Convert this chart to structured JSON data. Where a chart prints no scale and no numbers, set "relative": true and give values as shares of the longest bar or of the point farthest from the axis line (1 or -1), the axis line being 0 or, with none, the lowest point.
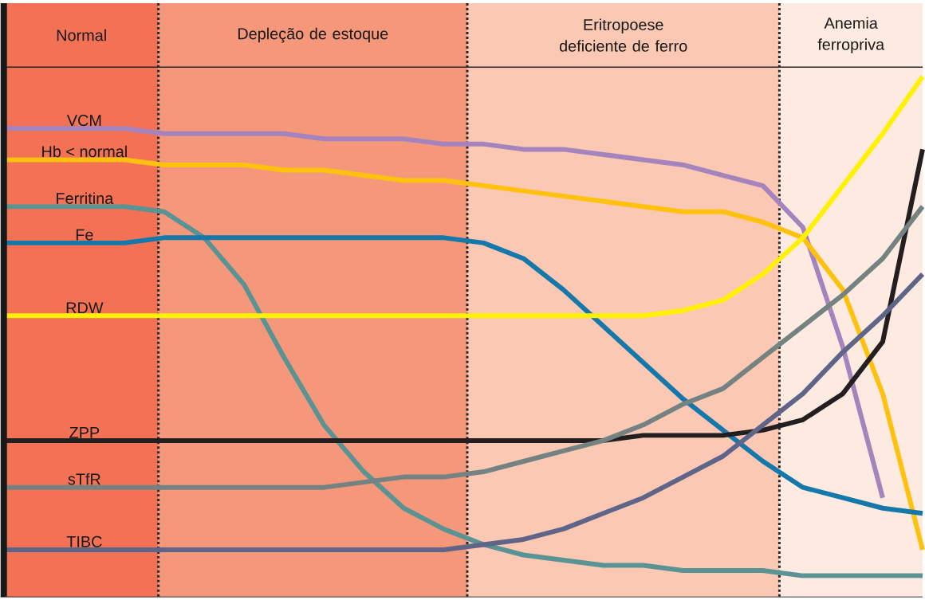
{
  "chart_data": {
    "type": "line",
    "relative": true,
    "categories": [
      null,
      null,
      null,
      null,
      null,
      null,
      null,
      null,
      null,
      null,
      null,
      null,
      null,
      null,
      null,
      null,
      null,
      null,
      null,
      null,
      null,
      null,
      null,
      null
    ],
    "series": [
      {
        "name": "VCM",
        "color": "#a584bd",
        "values": [
          0.9,
          0.9,
          0.9,
          0.9,
          0.89,
          0.89,
          0.89,
          0.89,
          0.88,
          0.88,
          0.88,
          0.87,
          0.87,
          0.86,
          0.86,
          0.85,
          0.84,
          0.83,
          0.81,
          0.79,
          0.71,
          0.48,
          0.19,
          null
        ]
      },
      {
        "name": "Hb < normal",
        "color": "#fdc10e",
        "values": [
          0.84,
          0.84,
          0.84,
          0.84,
          0.83,
          0.83,
          0.83,
          0.82,
          0.82,
          0.81,
          0.8,
          0.8,
          0.79,
          0.78,
          0.77,
          0.76,
          0.75,
          0.74,
          0.74,
          0.72,
          0.69,
          0.59,
          0.39,
          0.09
        ]
      },
      {
        "name": "Ferritina",
        "color": "#5a9394",
        "values": [
          0.75,
          0.75,
          0.75,
          0.75,
          0.74,
          0.69,
          0.6,
          0.46,
          0.33,
          0.24,
          0.17,
          0.13,
          0.1,
          0.08,
          0.07,
          0.06,
          0.06,
          0.05,
          0.05,
          0.05,
          0.04,
          0.04,
          0.04,
          0.04
        ]
      },
      {
        "name": "Fe",
        "color": "#1478ab",
        "values": [
          0.68,
          0.68,
          0.68,
          0.68,
          0.69,
          0.69,
          0.69,
          0.69,
          0.69,
          0.69,
          0.69,
          0.69,
          0.68,
          0.65,
          0.59,
          0.52,
          0.45,
          0.38,
          0.32,
          0.26,
          0.21,
          0.19,
          0.17,
          0.16
        ]
      },
      {
        "name": "RDW",
        "color": "#fff200",
        "values": [
          0.54,
          0.54,
          0.54,
          0.54,
          0.54,
          0.54,
          0.54,
          0.54,
          0.54,
          0.54,
          0.54,
          0.54,
          0.54,
          0.54,
          0.54,
          0.54,
          0.54,
          0.55,
          0.57,
          0.62,
          0.69,
          0.79,
          0.89,
          1.0
        ]
      },
      {
        "name": "ZPP",
        "color": "#231f20",
        "values": [
          0.3,
          0.3,
          0.3,
          0.3,
          0.3,
          0.3,
          0.3,
          0.3,
          0.3,
          0.3,
          0.3,
          0.3,
          0.3,
          0.3,
          0.3,
          0.3,
          0.31,
          0.31,
          0.31,
          0.32,
          0.34,
          0.39,
          0.49,
          0.86
        ]
      },
      {
        "name": "sTfR",
        "color": "#748382",
        "values": [
          0.21,
          0.21,
          0.21,
          0.21,
          0.21,
          0.21,
          0.21,
          0.21,
          0.21,
          0.22,
          0.23,
          0.23,
          0.24,
          0.26,
          0.28,
          0.3,
          0.33,
          0.37,
          0.4,
          0.46,
          0.52,
          0.58,
          0.65,
          0.75
        ]
      },
      {
        "name": "TIBC",
        "color": "#5f6589",
        "values": [
          0.09,
          0.09,
          0.09,
          0.09,
          0.09,
          0.09,
          0.09,
          0.09,
          0.09,
          0.09,
          0.09,
          0.09,
          0.1,
          0.11,
          0.13,
          0.16,
          0.19,
          0.23,
          0.27,
          0.33,
          0.39,
          0.47,
          0.54,
          0.62
        ]
      }
    ],
    "annotations": [
      "Normal",
      "Depleção de estoque",
      "Eritropoese deficiente de ferro",
      "Anemia ferropriva"
    ]
  }
}
